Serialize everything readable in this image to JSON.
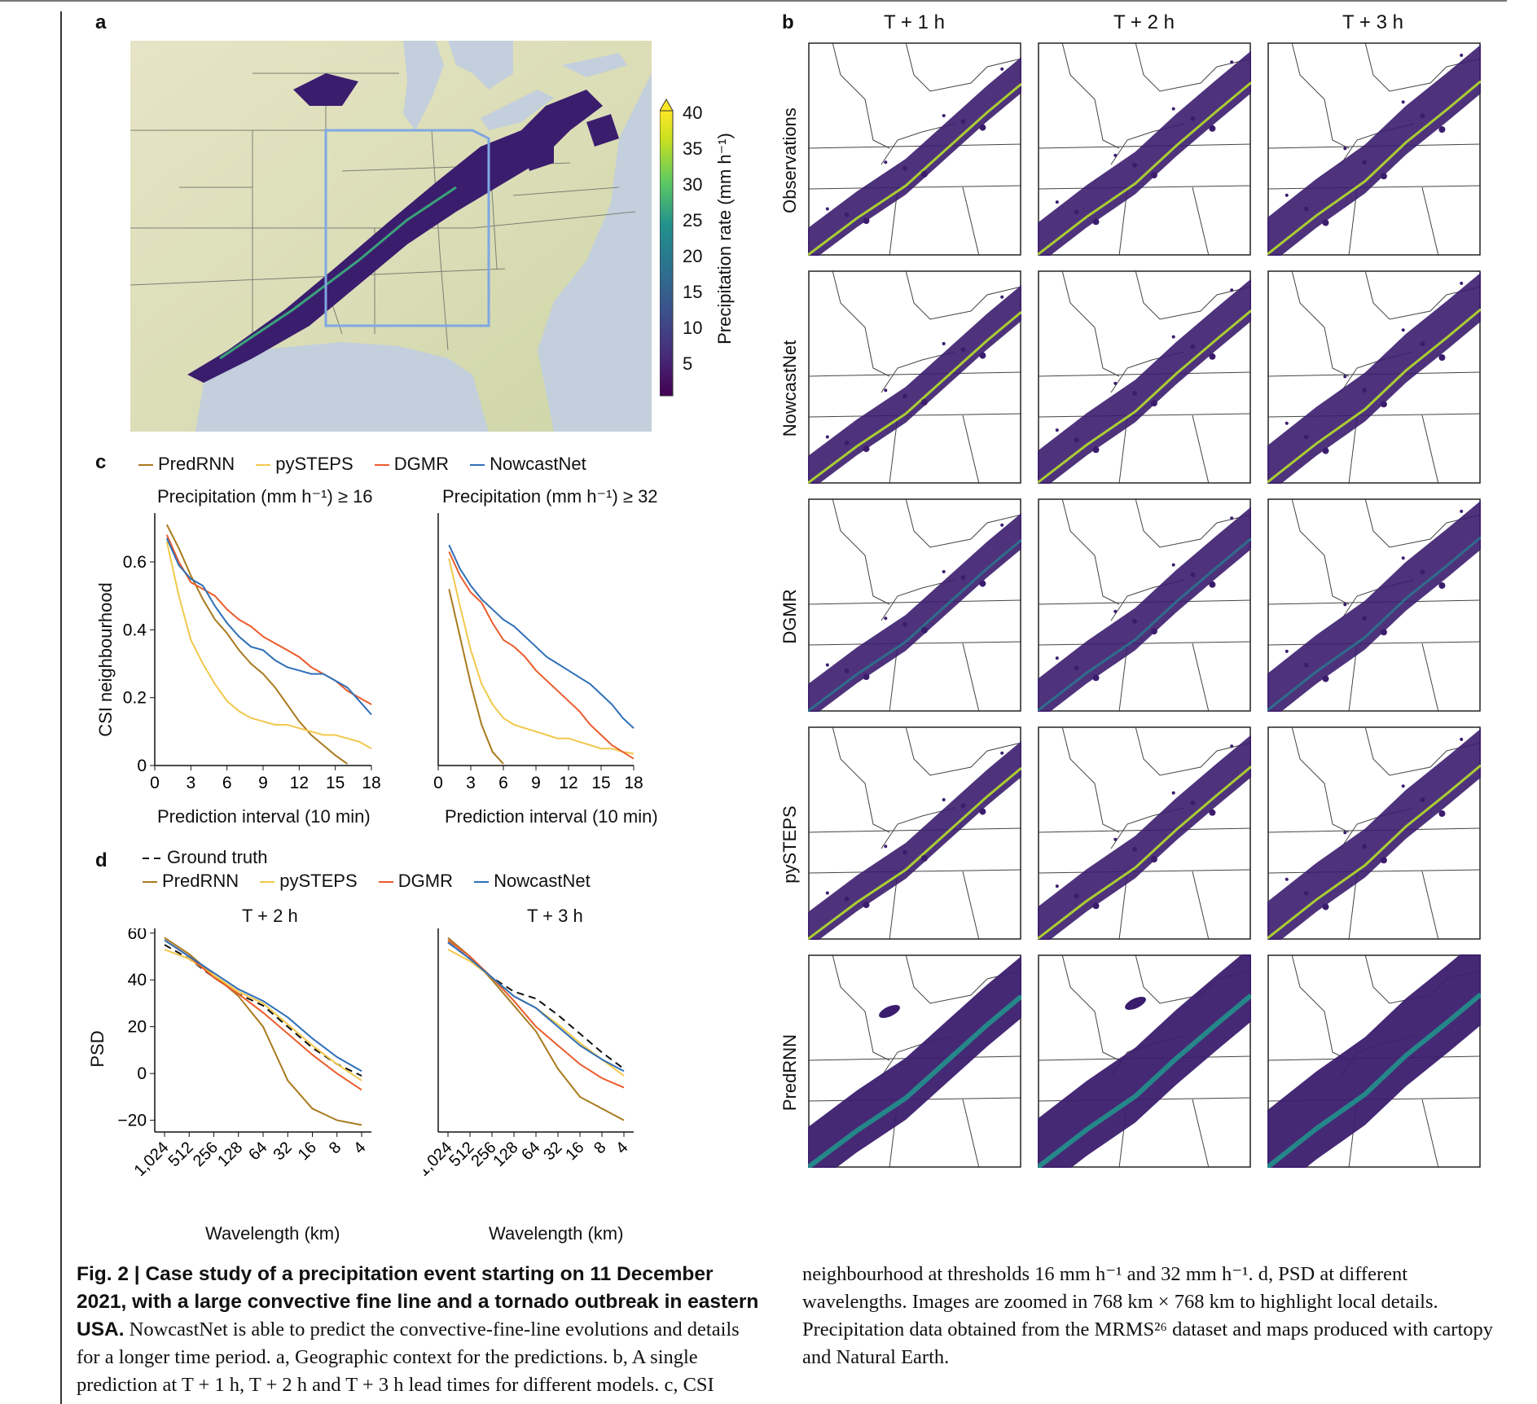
{
  "panels": {
    "a": "a",
    "b": "b",
    "c": "c",
    "d": "d"
  },
  "panel_a": {
    "colorbar_ticks": [
      "40",
      "35",
      "30",
      "25",
      "20",
      "15",
      "10",
      "5"
    ],
    "colorbar_label": "Precipitation rate (mm h⁻¹)",
    "colors": {
      "sea": "#c3cfdc",
      "land": "#dfe0bf",
      "box": "#7fa7e2",
      "rain": "#3b1d6e"
    }
  },
  "panel_b": {
    "columns": [
      "T + 1 h",
      "T + 2 h",
      "T + 3 h"
    ],
    "rows": [
      "Observations",
      "NowcastNet",
      "DGMR",
      "pySTEPS",
      "PredRNN"
    ]
  },
  "legend_c": [
    {
      "name": "PredRNN",
      "color": "#a97a1e"
    },
    {
      "name": "pySTEPS",
      "color": "#f2c84b"
    },
    {
      "name": "DGMR",
      "color": "#eb5c2c"
    },
    {
      "name": "NowcastNet",
      "color": "#2f6fb7"
    }
  ],
  "legend_d": {
    "ground_truth": "Ground truth",
    "items": [
      {
        "name": "PredRNN",
        "color": "#a97a1e"
      },
      {
        "name": "pySTEPS",
        "color": "#f2c84b"
      },
      {
        "name": "DGMR",
        "color": "#eb5c2c"
      },
      {
        "name": "NowcastNet",
        "color": "#2f6fb7"
      }
    ]
  },
  "chart_data": [
    {
      "type": "line",
      "title": "Precipitation (mm h⁻¹) ≥ 16",
      "xlabel": "Prediction interval (10 min)",
      "ylabel": "CSI neighbourhood",
      "xlim": [
        0,
        18
      ],
      "ylim": [
        0,
        0.72
      ],
      "xticks": [
        "0",
        "3",
        "6",
        "9",
        "12",
        "15",
        "18"
      ],
      "yticks": [
        "0",
        "0.2",
        "0.4",
        "0.6"
      ],
      "x": [
        1,
        2,
        3,
        4,
        5,
        6,
        7,
        8,
        9,
        10,
        11,
        12,
        13,
        14,
        15,
        16,
        17,
        18
      ],
      "series": [
        {
          "name": "PredRNN",
          "values": [
            0.71,
            0.64,
            0.56,
            0.49,
            0.43,
            0.39,
            0.34,
            0.3,
            0.27,
            0.23,
            0.18,
            0.13,
            0.09,
            0.06,
            0.03,
            0.005,
            null,
            null
          ]
        },
        {
          "name": "pySTEPS",
          "values": [
            0.66,
            0.5,
            0.37,
            0.3,
            0.24,
            0.19,
            0.16,
            0.14,
            0.13,
            0.12,
            0.12,
            0.11,
            0.1,
            0.09,
            0.09,
            0.08,
            0.07,
            0.05
          ]
        },
        {
          "name": "DGMR",
          "values": [
            0.68,
            0.6,
            0.54,
            0.52,
            0.5,
            0.46,
            0.43,
            0.41,
            0.38,
            0.36,
            0.34,
            0.32,
            0.29,
            0.27,
            0.25,
            0.22,
            0.2,
            0.18
          ]
        },
        {
          "name": "NowcastNet",
          "values": [
            0.67,
            0.59,
            0.55,
            0.53,
            0.47,
            0.42,
            0.38,
            0.35,
            0.34,
            0.31,
            0.29,
            0.28,
            0.27,
            0.27,
            0.25,
            0.23,
            0.19,
            0.15
          ]
        }
      ]
    },
    {
      "type": "line",
      "title": "Precipitation (mm h⁻¹) ≥ 32",
      "xlabel": "Prediction interval (10 min)",
      "ylabel": "",
      "xlim": [
        0,
        18
      ],
      "ylim": [
        0,
        0.72
      ],
      "xticks": [
        "0",
        "3",
        "6",
        "9",
        "12",
        "15",
        "18"
      ],
      "yticks": [],
      "x": [
        1,
        2,
        3,
        4,
        5,
        6,
        7,
        8,
        9,
        10,
        11,
        12,
        13,
        14,
        15,
        16,
        17,
        18
      ],
      "series": [
        {
          "name": "PredRNN",
          "values": [
            0.52,
            0.38,
            0.24,
            0.12,
            0.04,
            0.005,
            null,
            null,
            null,
            null,
            null,
            null,
            null,
            null,
            null,
            null,
            null,
            null
          ]
        },
        {
          "name": "pySTEPS",
          "values": [
            0.61,
            0.47,
            0.34,
            0.24,
            0.18,
            0.14,
            0.12,
            0.11,
            0.1,
            0.09,
            0.08,
            0.08,
            0.07,
            0.06,
            0.05,
            0.05,
            0.04,
            0.035
          ]
        },
        {
          "name": "DGMR",
          "values": [
            0.63,
            0.56,
            0.51,
            0.48,
            0.42,
            0.37,
            0.35,
            0.32,
            0.28,
            0.25,
            0.22,
            0.19,
            0.16,
            0.12,
            0.09,
            0.06,
            0.04,
            0.02
          ]
        },
        {
          "name": "NowcastNet",
          "values": [
            0.65,
            0.58,
            0.53,
            0.49,
            0.46,
            0.43,
            0.41,
            0.38,
            0.35,
            0.32,
            0.3,
            0.28,
            0.26,
            0.24,
            0.21,
            0.18,
            0.14,
            0.11
          ]
        }
      ]
    },
    {
      "type": "line",
      "title": "T + 2 h",
      "xlabel": "Wavelength (km)",
      "ylabel": "PSD",
      "ylim": [
        -25,
        62
      ],
      "xticks": [
        "1,024",
        "512",
        "256",
        "128",
        "64",
        "32",
        "16",
        "8",
        "4"
      ],
      "yticks": [
        "−20",
        "0",
        "20",
        "40",
        "60"
      ],
      "x": [
        1024,
        512,
        256,
        128,
        64,
        32,
        16,
        8,
        4
      ],
      "series": [
        {
          "name": "Ground truth",
          "values": [
            55,
            49,
            41,
            34,
            29,
            20,
            11,
            4,
            -1
          ]
        },
        {
          "name": "PredRNN",
          "values": [
            58,
            51,
            42,
            33,
            20,
            -3,
            -15,
            -20,
            -22
          ]
        },
        {
          "name": "pySTEPS",
          "values": [
            53,
            49,
            42,
            35,
            30,
            21,
            12,
            4,
            -3
          ]
        },
        {
          "name": "DGMR",
          "values": [
            57,
            50,
            41,
            34,
            26,
            17,
            8,
            0,
            -7
          ]
        },
        {
          "name": "NowcastNet",
          "values": [
            57,
            50,
            43,
            36,
            31,
            24,
            15,
            7,
            1
          ]
        }
      ]
    },
    {
      "type": "line",
      "title": "T + 3 h",
      "xlabel": "Wavelength (km)",
      "ylabel": "",
      "ylim": [
        -25,
        62
      ],
      "xticks": [
        "1,024",
        "512",
        "256",
        "128",
        "64",
        "32",
        "16",
        "8",
        "4"
      ],
      "yticks": [],
      "x": [
        1024,
        512,
        256,
        128,
        64,
        32,
        16,
        8,
        4
      ],
      "series": [
        {
          "name": "Ground truth",
          "values": [
            56,
            49,
            41,
            35,
            32,
            25,
            17,
            9,
            2
          ]
        },
        {
          "name": "PredRNN",
          "values": [
            58,
            50,
            40,
            29,
            18,
            2,
            -10,
            -15,
            -20
          ]
        },
        {
          "name": "pySTEPS",
          "values": [
            53,
            48,
            41,
            33,
            28,
            21,
            13,
            6,
            -1
          ]
        },
        {
          "name": "DGMR",
          "values": [
            57,
            50,
            41,
            31,
            20,
            12,
            4,
            -2,
            -6
          ]
        },
        {
          "name": "NowcastNet",
          "values": [
            56,
            49,
            41,
            33,
            28,
            20,
            12,
            6,
            1
          ]
        }
      ]
    }
  ],
  "caption": {
    "title": "Fig. 2 | Case study of a precipitation event starting on 11 December 2021, with a large convective fine line and a tornado outbreak in eastern USA.",
    "left_text": "NowcastNet is able to predict the convective-fine-line evolutions and details for a longer time period. a, Geographic context for the predictions. b, A single prediction at T + 1 h, T + 2 h and T + 3 h lead times for different models. c, CSI",
    "right_text": "neighbourhood at thresholds 16 mm h⁻¹ and 32 mm h⁻¹. d, PSD at different wavelengths. Images are zoomed in 768 km × 768 km to highlight local details. Precipitation data obtained from the MRMS²⁶ dataset and maps produced with cartopy and Natural Earth."
  }
}
